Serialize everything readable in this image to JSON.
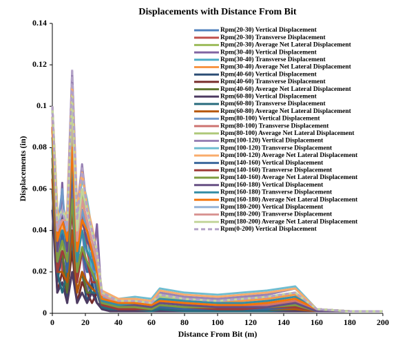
{
  "chart_data": {
    "type": "line",
    "title": "Displacements with  Distance From Bit",
    "x_label": "Distance From  Bit (m)",
    "y_label": "Displacements  (in)",
    "xlim": [
      0,
      200
    ],
    "xticks": [
      0,
      20,
      40,
      60,
      80,
      100,
      120,
      140,
      160,
      180,
      200
    ],
    "ylim": [
      0,
      0.14
    ],
    "yticks": [
      0,
      0.02,
      0.04,
      0.06,
      0.08,
      0.1,
      0.12,
      0.14
    ],
    "x": [
      0,
      3,
      6,
      9,
      12,
      15,
      18,
      21,
      24,
      27,
      30,
      35,
      40,
      50,
      60,
      65,
      80,
      100,
      115,
      130,
      147,
      160,
      180,
      200
    ],
    "series": [
      {
        "name": "Rpm(20-30) Vertical Displacement",
        "color": "#4f81bd",
        "values": [
          0.1,
          0.03,
          0.05,
          0.02,
          0.06,
          0.03,
          0.04,
          0.02,
          0.03,
          0.01,
          0.005,
          0.004,
          0.003,
          0.003,
          0.002,
          0.004,
          0.002,
          0.002,
          0.002,
          0.002,
          0.003,
          0.001,
          0.001,
          0.001
        ]
      },
      {
        "name": "Rpm(20-30) Transverse Displacement",
        "color": "#c0504d",
        "values": [
          0.09,
          0.04,
          0.02,
          0.05,
          0.08,
          0.02,
          0.05,
          0.03,
          0.02,
          0.02,
          0.008,
          0.006,
          0.005,
          0.004,
          0.003,
          0.006,
          0.004,
          0.003,
          0.003,
          0.003,
          0.004,
          0.001,
          0.001,
          0.001
        ]
      },
      {
        "name": "Rpm(20-30) Average Net Lateral Displacement",
        "color": "#9bbb59",
        "values": [
          0.1,
          0.05,
          0.03,
          0.04,
          0.09,
          0.04,
          0.06,
          0.04,
          0.03,
          0.02,
          0.01,
          0.008,
          0.006,
          0.005,
          0.004,
          0.008,
          0.005,
          0.004,
          0.004,
          0.004,
          0.006,
          0.002,
          0.001,
          0.001
        ]
      },
      {
        "name": "Rpm(30-40) Vertical Displacement",
        "color": "#8064a2",
        "values": [
          0.08,
          0.02,
          0.063,
          0.01,
          0.07,
          0.02,
          0.03,
          0.01,
          0.02,
          0.043,
          0.004,
          0.003,
          0.002,
          0.002,
          0.002,
          0.003,
          0.002,
          0.002,
          0.002,
          0.002,
          0.002,
          0.001,
          0.001,
          0.001
        ]
      },
      {
        "name": "Rpm(30-40) Transverse Displacement",
        "color": "#4bacc6",
        "values": [
          0.09,
          0.03,
          0.04,
          0.03,
          0.1,
          0.03,
          0.05,
          0.04,
          0.02,
          0.02,
          0.006,
          0.005,
          0.004,
          0.006,
          0.005,
          0.01,
          0.008,
          0.007,
          0.008,
          0.009,
          0.012,
          0.002,
          0.001,
          0.001
        ]
      },
      {
        "name": "Rpm(30-40) Average Net Lateral Displacement",
        "color": "#f79646",
        "values": [
          0.1,
          0.04,
          0.05,
          0.03,
          0.1,
          0.04,
          0.055,
          0.04,
          0.03,
          0.03,
          0.008,
          0.006,
          0.005,
          0.005,
          0.004,
          0.008,
          0.006,
          0.005,
          0.006,
          0.007,
          0.009,
          0.002,
          0.001,
          0.001
        ]
      },
      {
        "name": "Rpm(40-60) Vertical Displacement",
        "color": "#2c4d75",
        "values": [
          0.07,
          0.015,
          0.03,
          0.005,
          0.04,
          0.01,
          0.02,
          0.005,
          0.015,
          0.005,
          0.003,
          0.002,
          0.002,
          0.002,
          0.001,
          0.002,
          0.001,
          0.001,
          0.001,
          0.001,
          0.002,
          0.001,
          0.001,
          0.001
        ]
      },
      {
        "name": "Rpm(40-60) Transverse Displacement",
        "color": "#772c2a",
        "values": [
          0.06,
          0.01,
          0.02,
          0.01,
          0.03,
          0.005,
          0.015,
          0.01,
          0.005,
          0.01,
          0.002,
          0.002,
          0.001,
          0.001,
          0.001,
          0.002,
          0.001,
          0.001,
          0.001,
          0.001,
          0.001,
          0.001,
          0.001,
          0.001
        ]
      },
      {
        "name": "Rpm(40-60) Average Net Lateral Displacement",
        "color": "#5f7530",
        "values": [
          0.07,
          0.02,
          0.03,
          0.01,
          0.04,
          0.01,
          0.02,
          0.01,
          0.01,
          0.01,
          0.003,
          0.002,
          0.002,
          0.002,
          0.001,
          0.002,
          0.001,
          0.001,
          0.001,
          0.001,
          0.002,
          0.001,
          0.001,
          0.001
        ]
      },
      {
        "name": "Rpm(60-80) Vertical Displacement",
        "color": "#4d3b62",
        "values": [
          0.05,
          0.01,
          0.015,
          0.005,
          0.02,
          0.005,
          0.01,
          0.005,
          0.01,
          0.005,
          0.002,
          0.001,
          0.001,
          0.001,
          0.001,
          0.001,
          0.001,
          0.001,
          0.001,
          0.001,
          0.001,
          0.001,
          0.001,
          0.001
        ]
      },
      {
        "name": "Rpm(60-80) Transverse Displacement",
        "color": "#276a7c",
        "values": [
          0.06,
          0.02,
          0.01,
          0.02,
          0.035,
          0.01,
          0.02,
          0.015,
          0.01,
          0.01,
          0.003,
          0.002,
          0.002,
          0.002,
          0.001,
          0.002,
          0.001,
          0.001,
          0.001,
          0.001,
          0.002,
          0.001,
          0.001,
          0.001
        ]
      },
      {
        "name": "Rpm(60-80) Average Net Lateral Displacement",
        "color": "#b65708",
        "values": [
          0.065,
          0.02,
          0.02,
          0.015,
          0.04,
          0.01,
          0.02,
          0.015,
          0.012,
          0.01,
          0.004,
          0.003,
          0.002,
          0.002,
          0.002,
          0.003,
          0.002,
          0.002,
          0.002,
          0.002,
          0.002,
          0.001,
          0.001,
          0.001
        ]
      },
      {
        "name": "Rpm(80-100) Vertical Displacement",
        "color": "#729aca",
        "values": [
          0.1,
          0.04,
          0.06,
          0.03,
          0.09,
          0.03,
          0.05,
          0.04,
          0.035,
          0.02,
          0.008,
          0.006,
          0.004,
          0.004,
          0.003,
          0.006,
          0.004,
          0.003,
          0.003,
          0.003,
          0.005,
          0.002,
          0.001,
          0.001
        ]
      },
      {
        "name": "Rpm(80-100) Transverse Displacement",
        "color": "#cd7371",
        "values": [
          0.095,
          0.03,
          0.045,
          0.04,
          0.085,
          0.025,
          0.045,
          0.035,
          0.03,
          0.02,
          0.007,
          0.006,
          0.004,
          0.004,
          0.003,
          0.007,
          0.005,
          0.004,
          0.004,
          0.004,
          0.006,
          0.002,
          0.001,
          0.001
        ]
      },
      {
        "name": "Rpm(80-100) Average Net Lateral Displacement",
        "color": "#afc97a",
        "values": [
          0.1,
          0.045,
          0.05,
          0.04,
          0.095,
          0.035,
          0.055,
          0.045,
          0.035,
          0.025,
          0.009,
          0.007,
          0.005,
          0.005,
          0.004,
          0.008,
          0.006,
          0.005,
          0.005,
          0.005,
          0.007,
          0.002,
          0.001,
          0.001
        ]
      },
      {
        "name": "Rpm(100-120) Vertical Displacement",
        "color": "#9983b5",
        "values": [
          0.1,
          0.05,
          0.04,
          0.05,
          0.117,
          0.05,
          0.072,
          0.05,
          0.04,
          0.03,
          0.01,
          0.008,
          0.006,
          0.006,
          0.005,
          0.01,
          0.008,
          0.007,
          0.008,
          0.009,
          0.012,
          0.002,
          0.001,
          0.001
        ]
      },
      {
        "name": "Rpm(100-120) Transverse Displacement",
        "color": "#6fbdd1",
        "values": [
          0.1,
          0.045,
          0.035,
          0.045,
          0.11,
          0.045,
          0.065,
          0.055,
          0.04,
          0.03,
          0.01,
          0.008,
          0.007,
          0.008,
          0.007,
          0.012,
          0.01,
          0.009,
          0.01,
          0.011,
          0.013,
          0.002,
          0.001,
          0.001
        ]
      },
      {
        "name": "Rpm(100-120) Average Net Lateral Displacement",
        "color": "#f9ab6b",
        "values": [
          0.1,
          0.05,
          0.04,
          0.05,
          0.11,
          0.05,
          0.068,
          0.052,
          0.042,
          0.03,
          0.011,
          0.009,
          0.007,
          0.007,
          0.006,
          0.011,
          0.009,
          0.008,
          0.009,
          0.01,
          0.012,
          0.002,
          0.001,
          0.001
        ]
      },
      {
        "name": "Rpm(140-160) Vertical Displacement",
        "color": "#3a679c",
        "values": [
          0.08,
          0.02,
          0.04,
          0.02,
          0.05,
          0.02,
          0.03,
          0.02,
          0.02,
          0.01,
          0.004,
          0.003,
          0.002,
          0.002,
          0.002,
          0.003,
          0.002,
          0.002,
          0.002,
          0.002,
          0.003,
          0.001,
          0.001,
          0.001
        ]
      },
      {
        "name": "Rpm(140-160) Transverse Displacement",
        "color": "#9f3b38",
        "values": [
          0.075,
          0.02,
          0.03,
          0.025,
          0.05,
          0.015,
          0.03,
          0.025,
          0.015,
          0.015,
          0.004,
          0.003,
          0.002,
          0.002,
          0.002,
          0.004,
          0.003,
          0.002,
          0.002,
          0.003,
          0.003,
          0.001,
          0.001,
          0.001
        ]
      },
      {
        "name": "Rpm(140-160) Average Net Lateral Displacement",
        "color": "#7e9c40",
        "values": [
          0.08,
          0.025,
          0.035,
          0.025,
          0.055,
          0.02,
          0.032,
          0.025,
          0.02,
          0.015,
          0.005,
          0.004,
          0.003,
          0.003,
          0.002,
          0.004,
          0.003,
          0.003,
          0.003,
          0.003,
          0.004,
          0.001,
          0.001,
          0.001
        ]
      },
      {
        "name": "Rpm(160-180) Vertical Displacement",
        "color": "#664f83",
        "values": [
          0.09,
          0.03,
          0.05,
          0.03,
          0.07,
          0.03,
          0.045,
          0.035,
          0.03,
          0.02,
          0.006,
          0.005,
          0.004,
          0.004,
          0.003,
          0.005,
          0.004,
          0.003,
          0.003,
          0.003,
          0.005,
          0.001,
          0.001,
          0.001
        ]
      },
      {
        "name": "Rpm(160-180) Transverse Displacement",
        "color": "#358ea6",
        "values": [
          0.085,
          0.035,
          0.04,
          0.035,
          0.075,
          0.025,
          0.04,
          0.03,
          0.025,
          0.02,
          0.006,
          0.005,
          0.004,
          0.005,
          0.004,
          0.007,
          0.006,
          0.005,
          0.005,
          0.006,
          0.008,
          0.002,
          0.001,
          0.001
        ]
      },
      {
        "name": "Rpm(160-180) Average Net Lateral Displacement",
        "color": "#f3740b",
        "values": [
          0.09,
          0.035,
          0.045,
          0.035,
          0.08,
          0.03,
          0.045,
          0.04,
          0.03,
          0.02,
          0.007,
          0.006,
          0.005,
          0.005,
          0.004,
          0.006,
          0.005,
          0.004,
          0.004,
          0.005,
          0.007,
          0.002,
          0.001,
          0.001
        ]
      },
      {
        "name": "Rpm(180-200) Vertical Displacement",
        "color": "#95b3d7",
        "values": [
          0.1,
          0.04,
          0.05,
          0.04,
          0.1,
          0.04,
          0.06,
          0.05,
          0.04,
          0.03,
          0.01,
          0.008,
          0.006,
          0.006,
          0.005,
          0.009,
          0.007,
          0.006,
          0.007,
          0.008,
          0.01,
          0.002,
          0.001,
          0.001
        ]
      },
      {
        "name": "Rpm(180-200) Transverse Displacement",
        "color": "#d99694",
        "values": [
          0.1,
          0.04,
          0.045,
          0.045,
          0.1,
          0.035,
          0.055,
          0.045,
          0.035,
          0.025,
          0.009,
          0.007,
          0.006,
          0.006,
          0.005,
          0.009,
          0.007,
          0.006,
          0.007,
          0.008,
          0.01,
          0.002,
          0.001,
          0.001
        ]
      },
      {
        "name": "Rpm(180-200) Average Net Lateral Displacement",
        "color": "#c3d69b",
        "values": [
          0.1,
          0.045,
          0.05,
          0.045,
          0.105,
          0.04,
          0.06,
          0.05,
          0.04,
          0.03,
          0.01,
          0.008,
          0.006,
          0.006,
          0.005,
          0.009,
          0.007,
          0.006,
          0.007,
          0.008,
          0.01,
          0.002,
          0.001,
          0.001
        ]
      },
      {
        "name": "Rpm(0-200) Vertical Displacement",
        "color": "#b3a2c7",
        "dashed": true,
        "values": [
          0.1,
          0.04,
          0.05,
          0.04,
          0.118,
          0.045,
          0.07,
          0.05,
          0.04,
          0.03,
          0.01,
          0.008,
          0.006,
          0.006,
          0.005,
          0.009,
          0.007,
          0.006,
          0.007,
          0.008,
          0.01,
          0.002,
          0.001,
          0.001
        ]
      }
    ]
  }
}
